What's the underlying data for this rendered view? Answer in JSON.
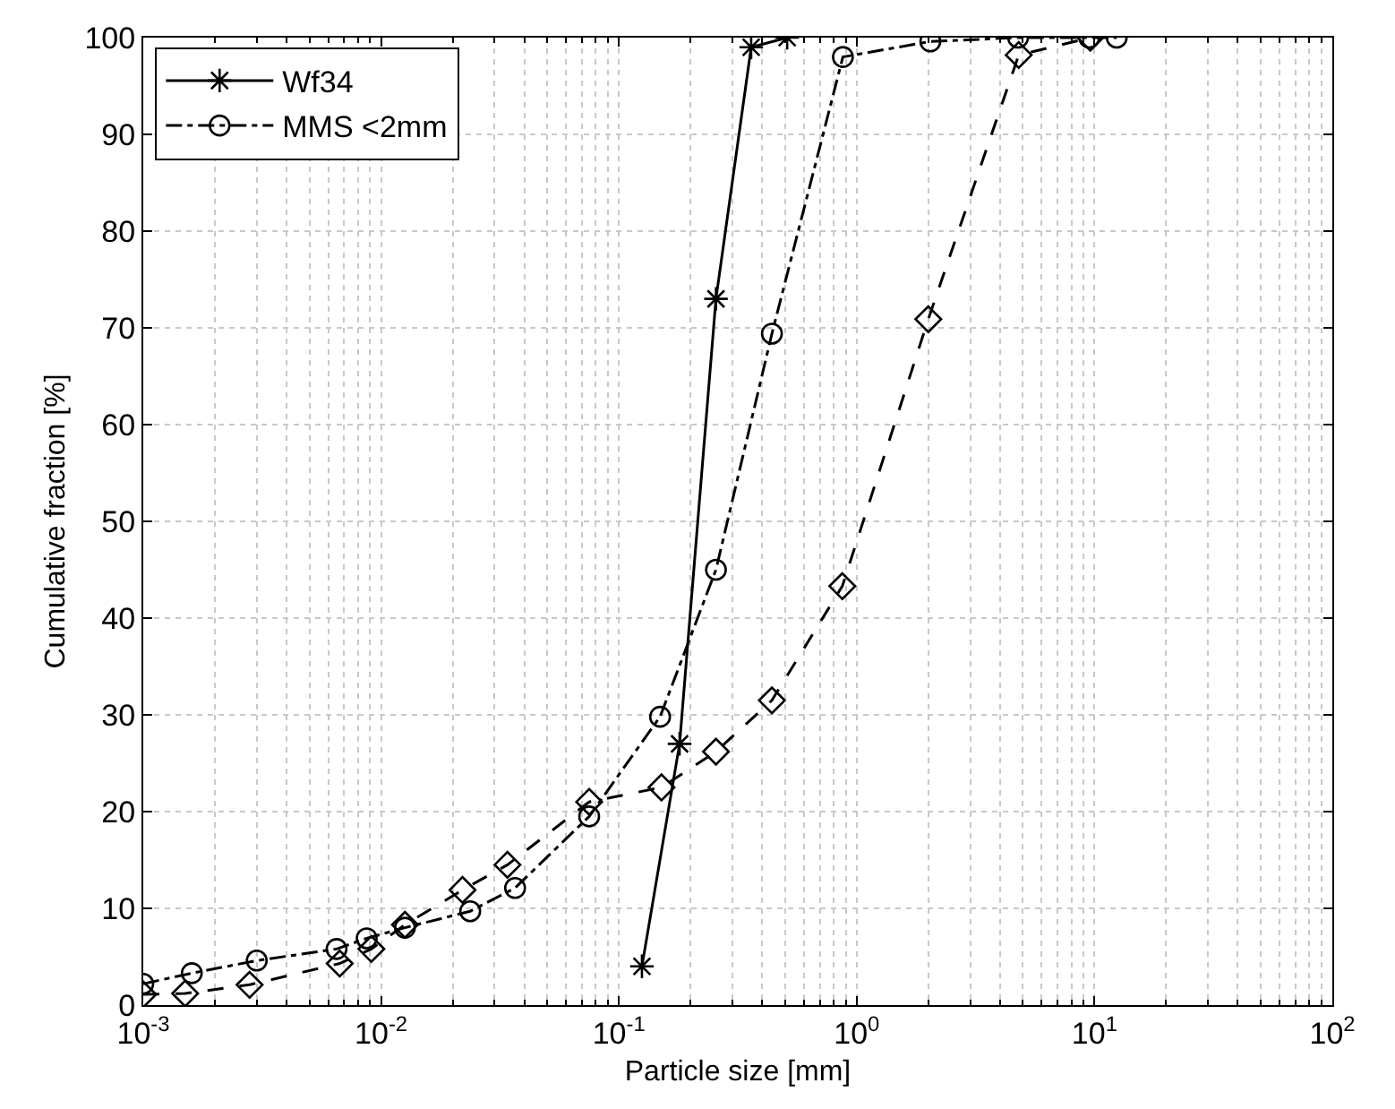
{
  "chart_data": {
    "type": "line",
    "xlabel": "Particle size [mm]",
    "ylabel": "Cumulative fraction [%]",
    "log": "x",
    "xlim": [
      0.001,
      100
    ],
    "xticks": [
      {
        "value": 0.001,
        "label": "10$^{-3}$"
      },
      {
        "value": 0.01,
        "label": "10$^{-2}$"
      },
      {
        "value": 0.1,
        "label": "10$^{-1}$"
      },
      {
        "value": 1,
        "label": "10$^{0}$"
      },
      {
        "value": 10,
        "label": "10$^{1}$"
      },
      {
        "value": 100,
        "label": "10$^{2}$"
      }
    ],
    "ylim": [
      0,
      100
    ],
    "yticks": [
      0,
      10,
      20,
      30,
      40,
      50,
      60,
      70,
      80,
      90,
      100
    ],
    "grid": true,
    "legend": "top left",
    "series": [
      {
        "name": "Wf34",
        "color": "#000000",
        "marker": "cross",
        "line_style": "solid",
        "x": [
          0.125,
          0.18,
          0.256,
          0.36,
          0.51
        ],
        "values": [
          4.0,
          27,
          73,
          99,
          100
        ]
      },
      {
        "color": "#000000",
        "marker": "diamond",
        "line_style": "dashed",
        "x": [
          0.001,
          0.0015,
          0.0028,
          0.0067,
          0.0091,
          0.0126,
          0.022,
          0.034,
          0.075,
          0.151,
          0.256,
          0.44,
          0.87,
          2.0,
          4.8,
          9.6
        ],
        "values": [
          1.1,
          1.2,
          2.1,
          4.3,
          5.8,
          8.3,
          11.9,
          14.5,
          21,
          22.5,
          26.2,
          31.5,
          43.3,
          70.9,
          98.2,
          100
        ]
      },
      {
        "name": "MMS <2mm",
        "color": "#000000",
        "marker": "circle",
        "line_style": "dashdot",
        "x": [
          0.001,
          0.0016,
          0.003,
          0.0065,
          0.0087,
          0.0126,
          0.0237,
          0.0366,
          0.075,
          0.149,
          0.256,
          0.44,
          0.875,
          2.04,
          4.77,
          9.5,
          12.4
        ],
        "values": [
          2.2,
          3.3,
          4.6,
          5.8,
          6.9,
          8.0,
          9.7,
          12.1,
          19.5,
          29.8,
          45,
          69.4,
          98,
          99.6,
          100,
          100,
          100
        ]
      }
    ]
  }
}
